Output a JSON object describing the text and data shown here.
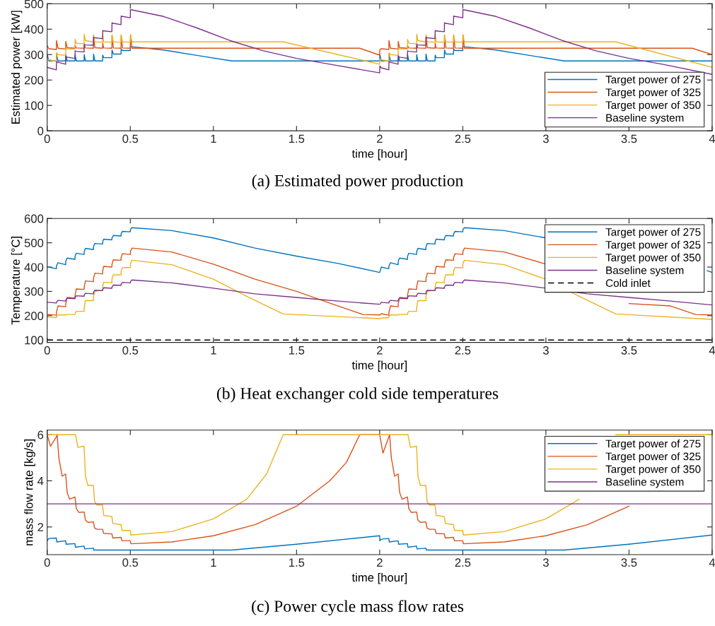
{
  "chart_data": [
    {
      "type": "line",
      "title": "(a) Estimated power production",
      "xlabel": "time [hour]",
      "ylabel": "Estimated power [kW]",
      "xlim": [
        0,
        4
      ],
      "ylim": [
        0,
        500
      ],
      "xticks": [
        0,
        0.5,
        1,
        1.5,
        2,
        2.5,
        3,
        3.5,
        4
      ],
      "yticks": [
        0,
        100,
        200,
        300,
        400,
        500
      ],
      "grid": false,
      "legend": "bottom right",
      "series": [
        {
          "name": "Target power of 275",
          "color": "#0072bd",
          "x": [
            0,
            0.01,
            0.055,
            0.056,
            0.065,
            0.111,
            0.112,
            0.12,
            0.167,
            0.168,
            0.175,
            0.222,
            0.223,
            0.23,
            0.278,
            0.279,
            0.287,
            0.333,
            0.334,
            0.34,
            0.389,
            0.39,
            0.398,
            0.444,
            0.445,
            0.453,
            0.5,
            0.501,
            0.51,
            0.7,
            0.9,
            1.11,
            2,
            2.001,
            2.01,
            2.055,
            2.056,
            2.065,
            2.111,
            2.112,
            2.12,
            2.167,
            2.168,
            2.175,
            2.222,
            2.223,
            2.23,
            2.278,
            2.279,
            2.287,
            2.333,
            2.334,
            2.34,
            2.389,
            2.39,
            2.398,
            2.444,
            2.445,
            2.453,
            2.5,
            2.501,
            2.51,
            2.7,
            2.9,
            3.11,
            4
          ],
          "values": [
            300,
            275,
            275,
            300,
            275,
            275,
            300,
            275,
            275,
            300,
            275,
            275,
            300,
            275,
            275,
            302,
            275,
            275,
            298,
            288,
            288,
            318,
            302,
            302,
            322,
            316,
            316,
            332,
            331,
            318,
            297,
            275,
            275,
            300,
            275,
            275,
            300,
            275,
            275,
            300,
            275,
            275,
            300,
            275,
            275,
            300,
            275,
            275,
            302,
            275,
            275,
            298,
            288,
            288,
            318,
            302,
            302,
            322,
            316,
            316,
            332,
            331,
            318,
            297,
            275,
            275
          ]
        },
        {
          "name": "Target power of 325",
          "color": "#d95319",
          "x": [
            0,
            0.01,
            0.055,
            0.056,
            0.065,
            0.111,
            0.112,
            0.12,
            0.167,
            0.168,
            0.175,
            0.222,
            0.223,
            0.23,
            0.278,
            0.279,
            0.287,
            0.333,
            0.334,
            0.34,
            0.389,
            0.39,
            0.398,
            0.444,
            0.445,
            0.453,
            0.5,
            0.501,
            0.51,
            1.88,
            2,
            2.001,
            2.01,
            2.055,
            2.056,
            2.065,
            2.111,
            2.112,
            2.12,
            2.167,
            2.168,
            2.175,
            2.222,
            2.223,
            2.23,
            2.278,
            2.279,
            2.287,
            2.333,
            2.334,
            2.34,
            2.389,
            2.39,
            2.398,
            2.444,
            2.445,
            2.453,
            2.5,
            2.501,
            2.51,
            3.88,
            4
          ],
          "values": [
            335,
            323,
            320,
            355,
            325,
            322,
            352,
            327,
            325,
            335,
            326,
            325,
            340,
            326,
            325,
            370,
            327,
            325,
            345,
            326,
            325,
            375,
            326,
            325,
            375,
            326,
            325,
            378,
            325,
            325,
            298,
            320,
            323,
            320,
            355,
            325,
            322,
            352,
            327,
            325,
            335,
            326,
            325,
            340,
            326,
            325,
            370,
            327,
            325,
            345,
            326,
            325,
            375,
            326,
            325,
            375,
            326,
            325,
            378,
            325,
            325,
            300
          ]
        },
        {
          "name": "Target power of 350",
          "color": "#edb120",
          "x": [
            0,
            0.01,
            0.055,
            0.056,
            0.065,
            0.111,
            0.112,
            0.12,
            0.167,
            0.168,
            0.175,
            0.222,
            0.223,
            0.23,
            0.278,
            0.279,
            0.287,
            0.333,
            0.334,
            0.34,
            0.389,
            0.39,
            0.398,
            0.444,
            0.445,
            0.453,
            0.5,
            0.501,
            0.51,
            1.42,
            2,
            2.001,
            2.01,
            2.055,
            2.056,
            2.065,
            2.111,
            2.112,
            2.12,
            2.167,
            2.168,
            2.175,
            2.222,
            2.223,
            2.23,
            2.278,
            2.279,
            2.287,
            2.333,
            2.334,
            2.34,
            2.389,
            2.39,
            2.398,
            2.444,
            2.445,
            2.453,
            2.5,
            2.501,
            2.51,
            3.42,
            4
          ],
          "values": [
            285,
            280,
            273,
            308,
            300,
            297,
            325,
            322,
            322,
            360,
            345,
            342,
            380,
            355,
            350,
            378,
            350,
            349,
            378,
            350,
            349,
            378,
            350,
            349,
            378,
            350,
            349,
            378,
            350,
            350,
            262,
            285,
            280,
            273,
            308,
            300,
            297,
            325,
            322,
            322,
            360,
            345,
            342,
            380,
            355,
            350,
            378,
            350,
            349,
            378,
            350,
            349,
            378,
            350,
            349,
            378,
            350,
            349,
            378,
            350,
            350,
            250
          ]
        },
        {
          "name": "Baseline system",
          "color": "#7e2f8e",
          "x": [
            0,
            0.01,
            0.055,
            0.056,
            0.065,
            0.111,
            0.112,
            0.12,
            0.167,
            0.168,
            0.175,
            0.222,
            0.223,
            0.23,
            0.278,
            0.279,
            0.287,
            0.333,
            0.334,
            0.34,
            0.389,
            0.39,
            0.398,
            0.444,
            0.445,
            0.453,
            0.5,
            0.501,
            0.51,
            0.7,
            0.9,
            1.1,
            1.3,
            1.5,
            1.7,
            2,
            2.001,
            2.01,
            2.055,
            2.056,
            2.065,
            2.111,
            2.112,
            2.12,
            2.167,
            2.168,
            2.175,
            2.222,
            2.223,
            2.23,
            2.278,
            2.279,
            2.287,
            2.333,
            2.334,
            2.34,
            2.389,
            2.39,
            2.398,
            2.444,
            2.445,
            2.453,
            2.5,
            2.501,
            2.51,
            2.7,
            2.9,
            3.1,
            3.3,
            3.5,
            3.7,
            4
          ],
          "values": [
            250,
            248,
            240,
            272,
            270,
            262,
            292,
            290,
            285,
            315,
            313,
            310,
            340,
            338,
            337,
            368,
            366,
            363,
            395,
            393,
            390,
            425,
            423,
            418,
            452,
            450,
            445,
            477,
            476,
            450,
            405,
            355,
            315,
            285,
            262,
            228,
            255,
            248,
            240,
            272,
            270,
            262,
            292,
            290,
            285,
            315,
            313,
            310,
            340,
            338,
            337,
            368,
            366,
            363,
            395,
            393,
            390,
            425,
            423,
            418,
            452,
            450,
            445,
            477,
            476,
            450,
            405,
            355,
            315,
            285,
            262,
            222
          ]
        }
      ]
    },
    {
      "type": "line",
      "title": "(b) Heat exchanger cold side temperatures",
      "xlabel": "time [hour]",
      "ylabel": "Temperature [°C]",
      "xlim": [
        0,
        4
      ],
      "ylim": [
        90,
        600
      ],
      "xticks": [
        0,
        0.5,
        1,
        1.5,
        2,
        2.5,
        3,
        3.5,
        4
      ],
      "yticks": [
        100,
        200,
        300,
        400,
        500,
        600
      ],
      "grid": false,
      "legend": "top right",
      "series": [
        {
          "name": "Target power of 275",
          "color": "#0072bd",
          "x": [
            0,
            0.01,
            0.055,
            0.056,
            0.065,
            0.111,
            0.112,
            0.12,
            0.167,
            0.168,
            0.175,
            0.222,
            0.223,
            0.23,
            0.278,
            0.279,
            0.287,
            0.333,
            0.334,
            0.34,
            0.389,
            0.39,
            0.398,
            0.444,
            0.445,
            0.453,
            0.5,
            0.501,
            0.51,
            0.75,
            1,
            1.25,
            1.5,
            1.75,
            2,
            2.001,
            2.01,
            2.055,
            2.056,
            2.065,
            2.111,
            2.112,
            2.12,
            2.167,
            2.168,
            2.175,
            2.222,
            2.223,
            2.23,
            2.278,
            2.279,
            2.287,
            2.333,
            2.334,
            2.34,
            2.389,
            2.39,
            2.398,
            2.444,
            2.445,
            2.453,
            2.5,
            2.501,
            2.51,
            2.75,
            3,
            3.25,
            3.5,
            3.97,
            4
          ],
          "values": [
            402,
            400,
            393,
            405,
            418,
            410,
            425,
            437,
            432,
            445,
            457,
            452,
            465,
            477,
            472,
            485,
            497,
            495,
            505,
            515,
            512,
            520,
            530,
            528,
            537,
            547,
            545,
            555,
            562,
            550,
            520,
            478,
            445,
            415,
            378,
            380,
            400,
            393,
            405,
            418,
            410,
            425,
            437,
            432,
            445,
            457,
            452,
            465,
            477,
            472,
            485,
            497,
            495,
            505,
            515,
            512,
            520,
            530,
            528,
            537,
            547,
            545,
            555,
            562,
            550,
            520,
            null,
            null,
            385,
            378
          ]
        },
        {
          "name": "Target power of 325",
          "color": "#d95319",
          "x": [
            0,
            0.01,
            0.055,
            0.056,
            0.065,
            0.111,
            0.112,
            0.12,
            0.167,
            0.168,
            0.175,
            0.222,
            0.223,
            0.23,
            0.278,
            0.279,
            0.287,
            0.333,
            0.334,
            0.34,
            0.389,
            0.39,
            0.398,
            0.444,
            0.445,
            0.453,
            0.5,
            0.501,
            0.51,
            0.75,
            1,
            1.25,
            1.5,
            1.75,
            1.9,
            2,
            2.001,
            2.01,
            2.055,
            2.056,
            2.065,
            2.111,
            2.112,
            2.12,
            2.167,
            2.168,
            2.175,
            2.222,
            2.223,
            2.23,
            2.278,
            2.279,
            2.287,
            2.333,
            2.334,
            2.34,
            2.389,
            2.39,
            2.398,
            2.444,
            2.445,
            2.453,
            2.5,
            2.501,
            2.51,
            2.75,
            3,
            3.25,
            3.5,
            3.75,
            3.9,
            4
          ],
          "values": [
            200,
            205,
            202,
            215,
            240,
            237,
            250,
            275,
            272,
            285,
            310,
            308,
            320,
            343,
            340,
            355,
            375,
            372,
            385,
            403,
            400,
            412,
            430,
            428,
            440,
            455,
            452,
            465,
            478,
            462,
            412,
            350,
            300,
            240,
            205,
            203,
            203,
            208,
            202,
            215,
            240,
            237,
            250,
            275,
            272,
            285,
            310,
            308,
            320,
            343,
            340,
            355,
            375,
            372,
            385,
            403,
            400,
            412,
            430,
            428,
            440,
            455,
            452,
            465,
            478,
            462,
            412,
            null,
            250,
            240,
            205,
            203
          ]
        },
        {
          "name": "Target power of 350",
          "color": "#edb120",
          "x": [
            0,
            0.01,
            0.055,
            0.056,
            0.065,
            0.111,
            0.112,
            0.12,
            0.167,
            0.168,
            0.175,
            0.222,
            0.223,
            0.23,
            0.278,
            0.279,
            0.287,
            0.333,
            0.334,
            0.34,
            0.389,
            0.39,
            0.398,
            0.444,
            0.445,
            0.453,
            0.5,
            0.501,
            0.51,
            0.75,
            1,
            1.2,
            1.42,
            2,
            2.001,
            2.01,
            2.055,
            2.056,
            2.065,
            2.111,
            2.112,
            2.12,
            2.167,
            2.168,
            2.175,
            2.222,
            2.223,
            2.23,
            2.278,
            2.279,
            2.287,
            2.333,
            2.334,
            2.34,
            2.389,
            2.39,
            2.398,
            2.444,
            2.445,
            2.453,
            2.5,
            2.501,
            2.51,
            2.75,
            3,
            3.2,
            3.42,
            4
          ],
          "values": [
            195,
            194,
            192,
            196,
            203,
            203,
            204,
            205,
            205,
            210,
            218,
            218,
            235,
            262,
            262,
            280,
            300,
            305,
            320,
            338,
            335,
            352,
            368,
            368,
            385,
            398,
            398,
            415,
            428,
            410,
            350,
            280,
            207,
            188,
            188,
            190,
            192,
            196,
            203,
            203,
            204,
            205,
            205,
            210,
            218,
            218,
            235,
            262,
            262,
            280,
            300,
            305,
            320,
            338,
            335,
            352,
            368,
            368,
            385,
            398,
            398,
            415,
            428,
            410,
            350,
            280,
            207,
            185
          ]
        },
        {
          "name": "Baseline system",
          "color": "#7e2f8e",
          "x": [
            0,
            0.01,
            0.055,
            0.056,
            0.065,
            0.111,
            0.112,
            0.12,
            0.167,
            0.168,
            0.175,
            0.222,
            0.223,
            0.23,
            0.278,
            0.279,
            0.287,
            0.333,
            0.334,
            0.34,
            0.389,
            0.39,
            0.398,
            0.444,
            0.445,
            0.453,
            0.5,
            0.501,
            0.51,
            0.75,
            1,
            1.25,
            1.5,
            1.75,
            2,
            2.001,
            2.01,
            2.055,
            2.056,
            2.065,
            2.111,
            2.112,
            2.12,
            2.167,
            2.168,
            2.175,
            2.222,
            2.223,
            2.23,
            2.278,
            2.279,
            2.287,
            2.333,
            2.334,
            2.34,
            2.389,
            2.39,
            2.398,
            2.444,
            2.445,
            2.453,
            2.5,
            2.501,
            2.51,
            2.75,
            3,
            3.25,
            3.5,
            3.75,
            4
          ],
          "values": [
            255,
            255,
            252,
            256,
            263,
            260,
            265,
            272,
            270,
            275,
            282,
            280,
            285,
            292,
            290,
            297,
            305,
            303,
            308,
            315,
            313,
            318,
            326,
            325,
            330,
            337,
            335,
            340,
            347,
            335,
            313,
            290,
            275,
            260,
            247,
            247,
            255,
            252,
            256,
            263,
            260,
            265,
            272,
            270,
            275,
            282,
            280,
            285,
            292,
            290,
            297,
            305,
            303,
            308,
            315,
            313,
            318,
            326,
            325,
            330,
            337,
            335,
            340,
            347,
            335,
            313,
            290,
            275,
            260,
            244
          ]
        },
        {
          "name": "Cold inlet",
          "color": "#000000",
          "line_style": "dashed",
          "x": [
            0,
            4
          ],
          "values": [
            100,
            100
          ]
        }
      ]
    },
    {
      "type": "line",
      "title": "(c) Power cycle mass flow rates",
      "xlabel": "time [hour]",
      "ylabel": "mass flow rate [kg/s]",
      "xlim": [
        0,
        4
      ],
      "ylim": [
        0.8,
        6.2
      ],
      "xticks": [
        0,
        0.5,
        1,
        1.5,
        2,
        2.5,
        3,
        3.5,
        4
      ],
      "yticks": [
        2,
        4,
        6
      ],
      "grid": false,
      "legend": "top right",
      "series": [
        {
          "name": "Target power of 275",
          "color": "#0072bd",
          "x": [
            0,
            0.01,
            0.055,
            0.058,
            0.111,
            0.114,
            0.167,
            0.17,
            0.222,
            0.225,
            0.278,
            0.281,
            0.333,
            1.11,
            1.5,
            2,
            2.001,
            2.01,
            2.055,
            2.058,
            2.111,
            2.114,
            2.167,
            2.17,
            2.222,
            2.225,
            2.278,
            2.281,
            2.333,
            3.11,
            3.5,
            4
          ],
          "values": [
            1.4,
            1.5,
            1.52,
            1.35,
            1.4,
            1.25,
            1.28,
            1.12,
            1.17,
            1.05,
            1.08,
            1.0,
            1.0,
            1.0,
            1.25,
            1.62,
            1.4,
            1.47,
            1.5,
            1.35,
            1.4,
            1.25,
            1.28,
            1.12,
            1.17,
            1.05,
            1.08,
            1.0,
            1.0,
            1.0,
            1.25,
            1.65
          ]
        },
        {
          "name": "Target power of 325",
          "color": "#d95319",
          "x": [
            0,
            0.02,
            0.055,
            0.06,
            0.07,
            0.09,
            0.111,
            0.12,
            0.135,
            0.167,
            0.175,
            0.19,
            0.222,
            0.23,
            0.245,
            0.278,
            0.285,
            0.3,
            0.333,
            0.34,
            0.389,
            0.395,
            0.444,
            0.45,
            0.5,
            0.503,
            0.75,
            1.0,
            1.25,
            1.5,
            1.7,
            1.8,
            1.88,
            2,
            2.02,
            2.055,
            2.06,
            2.07,
            2.09,
            2.111,
            2.12,
            2.135,
            2.167,
            2.175,
            2.19,
            2.222,
            2.23,
            2.245,
            2.278,
            2.285,
            2.3,
            2.333,
            2.34,
            2.389,
            2.395,
            2.444,
            2.45,
            2.5,
            2.503,
            2.75,
            3.0,
            3.25,
            3.5
          ],
          "values": [
            6,
            5.5,
            5.9,
            6,
            5,
            4.2,
            4.3,
            3.5,
            3.2,
            3.3,
            2.8,
            2.63,
            2.65,
            2.3,
            2.2,
            2.22,
            1.95,
            1.9,
            1.9,
            1.72,
            1.7,
            1.52,
            1.55,
            1.4,
            1.4,
            1.27,
            1.35,
            1.62,
            2.1,
            2.9,
            4.0,
            4.8,
            6.0,
            6.0,
            5.2,
            5.9,
            6,
            5,
            4.2,
            4.3,
            3.5,
            3.2,
            3.3,
            2.8,
            2.63,
            2.65,
            2.3,
            2.2,
            2.22,
            1.95,
            1.9,
            1.9,
            1.72,
            1.7,
            1.52,
            1.55,
            1.4,
            1.4,
            1.27,
            1.35,
            1.62,
            2.1,
            2.9
          ]
        },
        {
          "name": "Target power of 350",
          "color": "#edb120",
          "x": [
            0,
            0.17,
            0.185,
            0.222,
            0.23,
            0.245,
            0.278,
            0.285,
            0.3,
            0.333,
            0.34,
            0.389,
            0.395,
            0.444,
            0.45,
            0.5,
            0.503,
            0.75,
            1.0,
            1.2,
            1.32,
            1.42,
            2,
            2.17,
            2.185,
            2.222,
            2.23,
            2.245,
            2.278,
            2.285,
            2.3,
            2.333,
            2.34,
            2.389,
            2.395,
            2.444,
            2.45,
            2.5,
            2.503,
            2.75,
            3.0,
            3.2,
            3.32,
            3.42,
            4
          ],
          "values": [
            6,
            6,
            5.45,
            5.5,
            4.2,
            3.8,
            3.8,
            3.1,
            2.95,
            2.95,
            2.5,
            2.45,
            2.15,
            2.1,
            1.85,
            1.85,
            1.65,
            1.8,
            2.35,
            3.2,
            4.3,
            6.0,
            6.0,
            6,
            5.45,
            5.5,
            4.2,
            3.8,
            3.8,
            3.1,
            2.95,
            2.95,
            2.5,
            2.45,
            2.15,
            2.1,
            1.85,
            1.85,
            1.65,
            1.8,
            2.35,
            3.2,
            null,
            6.0,
            6.0
          ]
        },
        {
          "name": "Baseline system",
          "color": "#7e2f8e",
          "x": [
            0,
            4
          ],
          "values": [
            3,
            3
          ]
        }
      ]
    }
  ]
}
